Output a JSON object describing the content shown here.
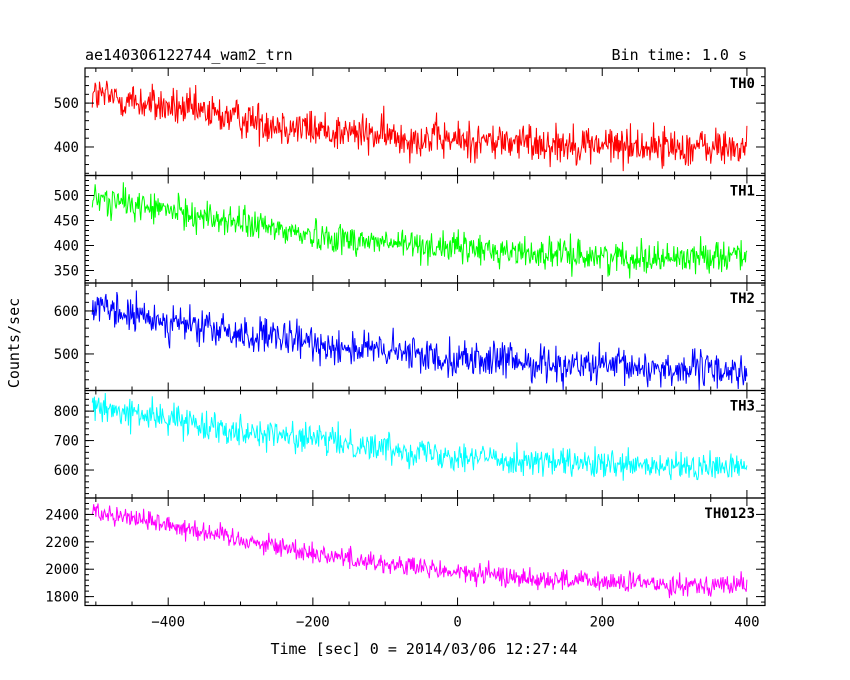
{
  "header": {
    "title": "ae140306122744_wam2_trn",
    "bin_time": "Bin time: 1.0 s"
  },
  "chart_data": {
    "type": "line",
    "ylabel": "Counts/sec",
    "xlabel": "Time [sec] 0 = 2014/03/06 12:27:44",
    "xlim": [
      -515,
      425
    ],
    "x_start": -505,
    "x_end": 400,
    "x_ticks": [
      -400,
      -200,
      0,
      200,
      400
    ],
    "x_tick_labels": [
      "−400",
      "−200",
      "0",
      "200",
      "400"
    ],
    "panels": [
      {
        "name": "TH0",
        "color": "#ff0000",
        "ylim": [
          335,
          580
        ],
        "y_ticks": [
          400,
          500
        ],
        "y_tick_labels": [
          "400",
          "500"
        ],
        "trend": [
          [
            -505,
            520
          ],
          [
            -400,
            490
          ],
          [
            -300,
            465
          ],
          [
            -200,
            440
          ],
          [
            -100,
            425
          ],
          [
            0,
            415
          ],
          [
            100,
            410
          ],
          [
            200,
            405
          ],
          [
            300,
            400
          ],
          [
            400,
            398
          ]
        ],
        "noise": 32
      },
      {
        "name": "TH1",
        "color": "#00ff00",
        "ylim": [
          325,
          540
        ],
        "y_ticks": [
          350,
          400,
          450,
          500
        ],
        "y_tick_labels": [
          "350",
          "400",
          "450",
          "500"
        ],
        "trend": [
          [
            -505,
            495
          ],
          [
            -400,
            470
          ],
          [
            -300,
            445
          ],
          [
            -200,
            420
          ],
          [
            -100,
            405
          ],
          [
            0,
            395
          ],
          [
            100,
            385
          ],
          [
            200,
            378
          ],
          [
            300,
            375
          ],
          [
            400,
            385
          ]
        ],
        "noise": 22
      },
      {
        "name": "TH2",
        "color": "#0000ff",
        "ylim": [
          415,
          665
        ],
        "y_ticks": [
          500,
          600
        ],
        "y_tick_labels": [
          "500",
          "600"
        ],
        "trend": [
          [
            -505,
            605
          ],
          [
            -400,
            575
          ],
          [
            -300,
            545
          ],
          [
            -200,
            525
          ],
          [
            -100,
            505
          ],
          [
            0,
            490
          ],
          [
            100,
            480
          ],
          [
            200,
            470
          ],
          [
            300,
            465
          ],
          [
            400,
            460
          ]
        ],
        "noise": 30
      },
      {
        "name": "TH3",
        "color": "#00ffff",
        "ylim": [
          505,
          870
        ],
        "y_ticks": [
          600,
          700,
          800
        ],
        "y_tick_labels": [
          "600",
          "700",
          "800"
        ],
        "trend": [
          [
            -505,
            810
          ],
          [
            -400,
            775
          ],
          [
            -300,
            735
          ],
          [
            -200,
            705
          ],
          [
            -100,
            675
          ],
          [
            0,
            650
          ],
          [
            100,
            630
          ],
          [
            200,
            615
          ],
          [
            300,
            608
          ],
          [
            400,
            610
          ]
        ],
        "noise": 35
      },
      {
        "name": "TH0123",
        "color": "#ff00ff",
        "ylim": [
          1735,
          2520
        ],
        "y_ticks": [
          1800,
          2000,
          2200,
          2400
        ],
        "y_tick_labels": [
          "1800",
          "2000",
          "2200",
          "2400"
        ],
        "trend": [
          [
            -505,
            2430
          ],
          [
            -400,
            2330
          ],
          [
            -300,
            2220
          ],
          [
            -200,
            2120
          ],
          [
            -100,
            2040
          ],
          [
            0,
            1975
          ],
          [
            100,
            1935
          ],
          [
            200,
            1905
          ],
          [
            300,
            1890
          ],
          [
            400,
            1885
          ]
        ],
        "noise": 55
      }
    ]
  }
}
